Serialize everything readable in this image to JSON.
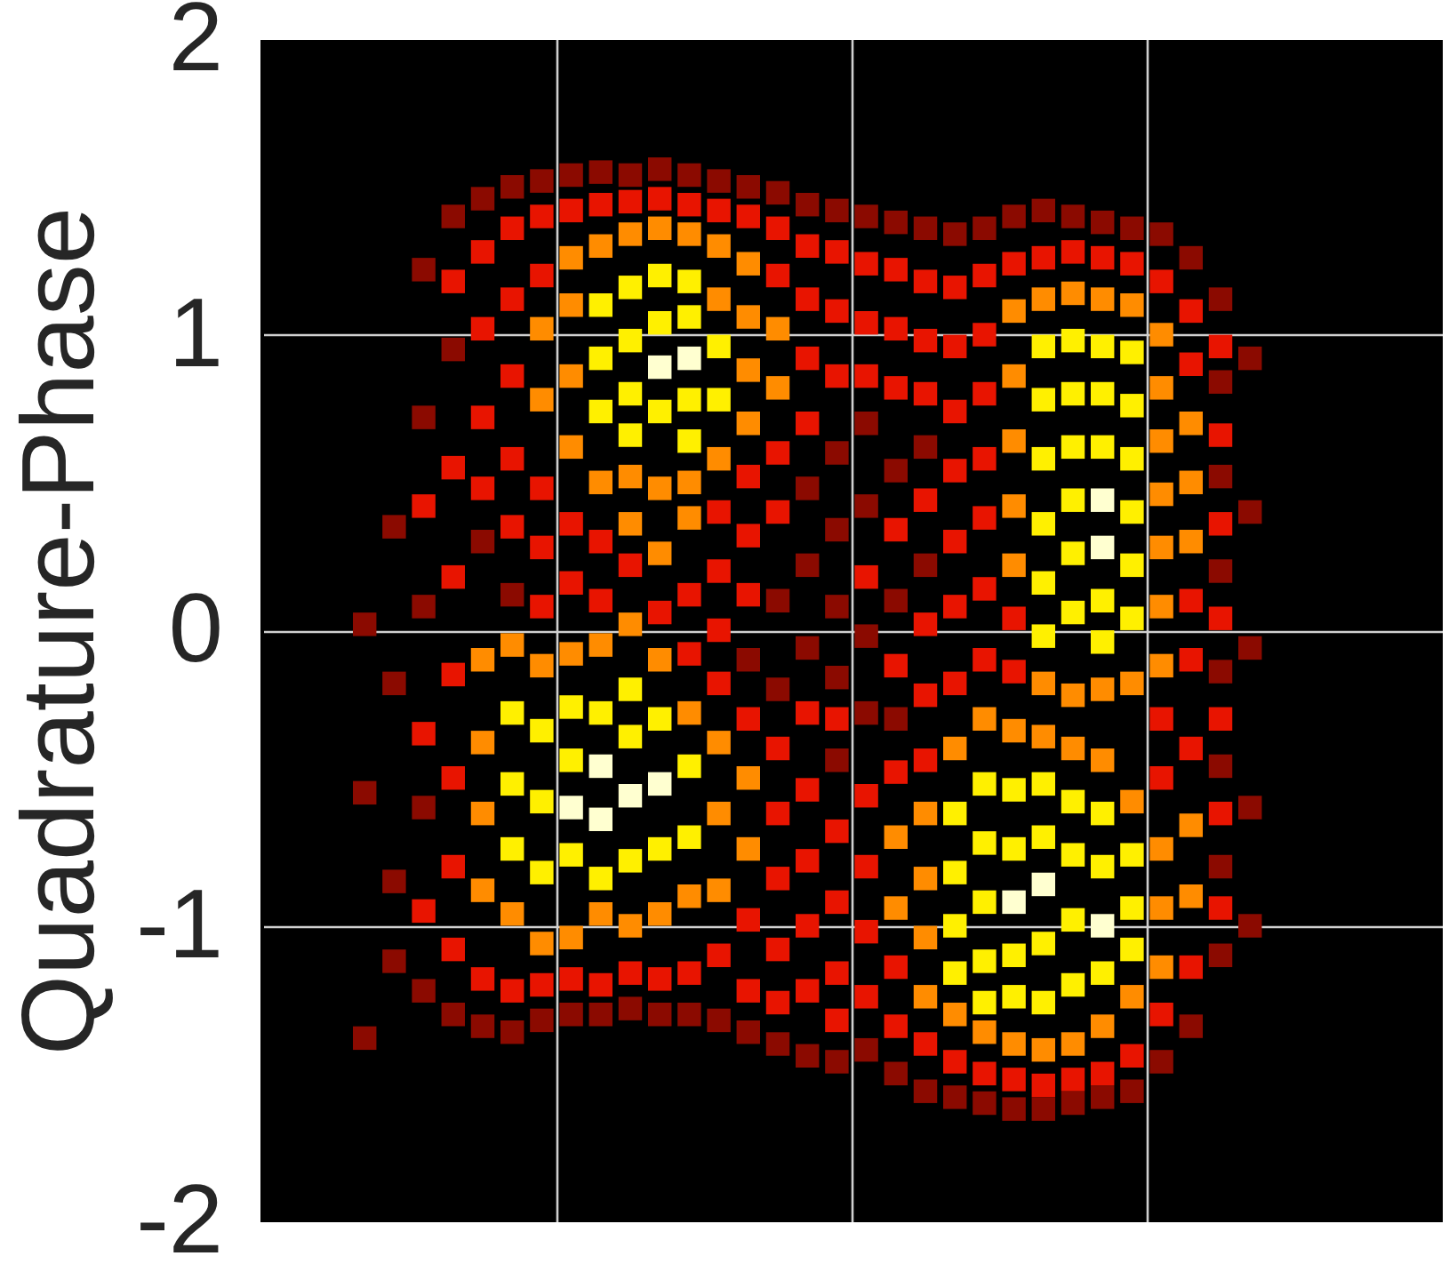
{
  "chart_data": {
    "type": "scatter",
    "ylabel": "Quadrature-Phase",
    "categories": [
      null,
      null,
      null,
      null,
      null,
      null,
      null,
      null,
      null,
      null,
      null,
      null,
      null,
      null,
      null,
      null,
      null,
      null,
      null,
      null,
      null,
      null,
      null,
      null,
      null,
      null,
      null,
      null,
      null,
      null,
      null,
      null,
      null,
      null,
      null,
      null,
      null,
      null,
      null,
      null
    ],
    "ylim": [
      -2,
      2
    ],
    "yticks": [
      -2,
      -1,
      0,
      1,
      2
    ],
    "tick_labels": "y",
    "grid": true,
    "marker": "square",
    "series": [
      {
        "color": "#8b0a00",
        "values": [
          null,
          null,
          null,
          0.02,
          0.35,
          1.22,
          1.4,
          1.46,
          1.5,
          1.52,
          1.54,
          1.55,
          1.54,
          1.56,
          1.54,
          1.52,
          1.5,
          1.48,
          1.44,
          1.42,
          1.4,
          1.38,
          1.36,
          1.34,
          1.36,
          1.4,
          1.42,
          1.4,
          1.38,
          1.36,
          1.34,
          1.26,
          1.12,
          0.92,
          null,
          null,
          null,
          null,
          null,
          null
        ]
      },
      {
        "color": "#8b0a00",
        "values": [
          null,
          null,
          null,
          -0.55,
          -0.18,
          0.72,
          0.95,
          0.3,
          0.12,
          -1.32,
          -1.3,
          -1.3,
          -1.28,
          -1.3,
          -1.3,
          -1.32,
          -0.1,
          0.1,
          0.48,
          0.6,
          0.7,
          0.54,
          0.62,
          -1.58,
          -1.6,
          -1.62,
          -1.62,
          -1.6,
          -1.58,
          -1.56,
          -1.46,
          -1.34,
          0.84,
          0.4,
          null,
          null,
          null,
          null,
          null,
          null
        ]
      },
      {
        "color": "#8b0a00",
        "values": [
          null,
          null,
          null,
          -1.38,
          -0.85,
          0.08,
          -1.3,
          -1.34,
          -1.36,
          null,
          null,
          null,
          null,
          null,
          null,
          null,
          -1.36,
          -0.2,
          0.22,
          0.34,
          0.42,
          0.1,
          0.22,
          null,
          null,
          null,
          null,
          null,
          null,
          null,
          null,
          null,
          0.52,
          -0.06,
          null,
          null,
          null,
          null,
          null,
          null
        ]
      },
      {
        "color": "#8b0a00",
        "values": [
          null,
          null,
          null,
          null,
          -1.12,
          -0.6,
          null,
          null,
          null,
          null,
          null,
          null,
          null,
          null,
          null,
          null,
          null,
          -1.4,
          -0.06,
          0.08,
          -0.02,
          -0.3,
          -1.56,
          null,
          null,
          null,
          null,
          null,
          null,
          null,
          null,
          null,
          0.2,
          -0.6,
          null,
          null,
          null,
          null,
          null,
          null
        ]
      },
      {
        "color": "#8b0a00",
        "values": [
          null,
          null,
          null,
          null,
          null,
          -1.22,
          null,
          null,
          null,
          null,
          null,
          null,
          null,
          null,
          null,
          null,
          null,
          null,
          -1.44,
          -0.16,
          -0.28,
          -1.5,
          null,
          null,
          null,
          null,
          null,
          null,
          null,
          null,
          null,
          null,
          -0.14,
          -1.0,
          null,
          null,
          null,
          null,
          null,
          null
        ]
      },
      {
        "color": "#8b0a00",
        "values": [
          null,
          null,
          null,
          null,
          null,
          null,
          null,
          null,
          null,
          null,
          null,
          null,
          null,
          null,
          null,
          null,
          null,
          null,
          null,
          -0.44,
          -1.42,
          null,
          null,
          null,
          null,
          null,
          null,
          null,
          null,
          null,
          null,
          null,
          -0.46,
          null,
          null,
          null,
          null,
          null,
          null,
          null
        ]
      },
      {
        "color": "#8b0a00",
        "values": [
          null,
          null,
          null,
          null,
          null,
          null,
          null,
          null,
          null,
          null,
          null,
          null,
          null,
          null,
          null,
          null,
          null,
          null,
          null,
          -1.46,
          null,
          null,
          null,
          null,
          null,
          null,
          null,
          null,
          null,
          null,
          null,
          null,
          -0.8,
          null,
          null,
          null,
          null,
          null,
          null,
          null
        ]
      },
      {
        "color": "#8b0a00",
        "values": [
          null,
          null,
          null,
          null,
          null,
          null,
          null,
          null,
          null,
          null,
          null,
          null,
          null,
          null,
          null,
          null,
          null,
          null,
          null,
          null,
          null,
          null,
          null,
          null,
          null,
          null,
          null,
          null,
          null,
          null,
          null,
          null,
          -1.1,
          null,
          null,
          null,
          null,
          null,
          null,
          null
        ]
      },
      {
        "color": "#e81400",
        "values": [
          null,
          null,
          null,
          null,
          null,
          0.42,
          1.18,
          1.28,
          1.36,
          1.4,
          1.42,
          1.44,
          1.45,
          1.46,
          1.44,
          1.42,
          1.4,
          1.36,
          1.3,
          1.28,
          1.24,
          1.22,
          1.18,
          1.16,
          1.2,
          1.24,
          1.26,
          1.28,
          1.26,
          1.24,
          1.18,
          1.08,
          0.96,
          null,
          null,
          null,
          null,
          null,
          null,
          null
        ]
      },
      {
        "color": "#e81400",
        "values": [
          null,
          null,
          null,
          null,
          null,
          -0.35,
          0.55,
          1.02,
          1.12,
          1.2,
          0.36,
          0.3,
          0.22,
          0.06,
          0.12,
          0.4,
          0.52,
          1.2,
          1.12,
          1.08,
          1.04,
          1.02,
          0.98,
          0.96,
          1.0,
          0.04,
          -1.54,
          -1.52,
          -1.5,
          -1.44,
          -0.3,
          0.9,
          0.66,
          null,
          null,
          null,
          null,
          null,
          null,
          null
        ]
      },
      {
        "color": "#e81400",
        "values": [
          null,
          null,
          null,
          null,
          null,
          -0.95,
          0.18,
          0.72,
          0.86,
          0.48,
          0.16,
          0.1,
          -1.16,
          -1.18,
          -0.08,
          0.2,
          0.32,
          0.6,
          0.92,
          0.86,
          0.86,
          0.82,
          0.8,
          0.74,
          0.8,
          -0.14,
          null,
          null,
          null,
          null,
          -0.5,
          0.1,
          0.36,
          null,
          null,
          null,
          null,
          null,
          null,
          null
        ]
      },
      {
        "color": "#e81400",
        "values": [
          null,
          null,
          null,
          null,
          null,
          null,
          -0.15,
          0.48,
          0.58,
          0.28,
          -1.18,
          -1.2,
          null,
          null,
          -1.16,
          0.0,
          0.12,
          0.4,
          0.7,
          -0.3,
          0.18,
          0.34,
          0.44,
          0.54,
          0.58,
          -1.52,
          null,
          null,
          null,
          null,
          -1.3,
          -0.1,
          0.04,
          null,
          null,
          null,
          null,
          null,
          null,
          null
        ]
      },
      {
        "color": "#e81400",
        "values": [
          null,
          null,
          null,
          null,
          null,
          null,
          -0.5,
          -1.18,
          0.35,
          0.08,
          null,
          null,
          null,
          null,
          null,
          -0.18,
          -0.3,
          -0.4,
          -0.28,
          -0.68,
          -0.56,
          -0.12,
          0.02,
          0.3,
          0.38,
          null,
          null,
          null,
          null,
          null,
          null,
          -0.4,
          -0.3,
          null,
          null,
          null,
          null,
          null,
          null,
          null
        ]
      },
      {
        "color": "#e81400",
        "values": [
          null,
          null,
          null,
          null,
          null,
          null,
          -0.8,
          null,
          -1.22,
          -1.2,
          null,
          null,
          null,
          null,
          null,
          -1.1,
          -0.98,
          -0.62,
          -0.54,
          -0.92,
          -0.8,
          -0.48,
          -0.22,
          0.08,
          0.14,
          null,
          null,
          null,
          null,
          null,
          null,
          -1.14,
          -0.62,
          null,
          null,
          null,
          null,
          null,
          null,
          null
        ]
      },
      {
        "color": "#e81400",
        "values": [
          null,
          null,
          null,
          null,
          null,
          null,
          -1.08,
          null,
          null,
          null,
          null,
          null,
          null,
          null,
          null,
          null,
          -1.22,
          -0.84,
          -0.78,
          -1.16,
          -1.02,
          -1.14,
          -0.44,
          -0.18,
          -0.1,
          null,
          null,
          null,
          null,
          null,
          null,
          null,
          -0.94,
          null,
          null,
          null,
          null,
          null,
          null,
          null
        ]
      },
      {
        "color": "#e81400",
        "values": [
          null,
          null,
          null,
          null,
          null,
          null,
          null,
          null,
          null,
          null,
          null,
          null,
          null,
          null,
          null,
          null,
          null,
          -1.08,
          -1.0,
          -1.32,
          -1.24,
          -1.34,
          -1.4,
          -1.46,
          -1.5,
          null,
          null,
          null,
          null,
          null,
          null,
          null,
          null,
          null,
          null,
          null,
          null,
          null,
          null,
          null
        ]
      },
      {
        "color": "#e81400",
        "values": [
          null,
          null,
          null,
          null,
          null,
          null,
          null,
          null,
          null,
          null,
          null,
          null,
          null,
          null,
          null,
          null,
          null,
          -1.26,
          -1.22,
          null,
          null,
          null,
          null,
          null,
          null,
          null,
          null,
          null,
          null,
          null,
          null,
          null,
          null,
          null,
          null,
          null,
          null,
          null,
          null,
          null
        ]
      },
      {
        "color": "#ff8c00",
        "values": [
          null,
          null,
          null,
          null,
          null,
          null,
          null,
          -0.1,
          -0.05,
          1.02,
          1.26,
          1.3,
          1.34,
          1.36,
          1.34,
          1.3,
          1.24,
          1.02,
          null,
          null,
          null,
          -0.7,
          -0.62,
          -0.4,
          -0.3,
          1.08,
          1.12,
          1.14,
          1.12,
          1.1,
          1.0,
          0.7,
          null,
          null,
          null,
          null,
          null,
          null,
          null,
          null
        ]
      },
      {
        "color": "#ff8c00",
        "values": [
          null,
          null,
          null,
          null,
          null,
          null,
          null,
          -0.38,
          -0.96,
          0.78,
          1.1,
          0.5,
          0.52,
          0.48,
          0.5,
          1.12,
          1.06,
          0.82,
          null,
          null,
          null,
          -0.94,
          -0.84,
          -1.3,
          -1.36,
          0.86,
          -0.18,
          -0.22,
          -0.2,
          -0.18,
          0.82,
          0.5,
          null,
          null,
          null,
          null,
          null,
          null,
          null,
          null
        ]
      },
      {
        "color": "#ff8c00",
        "values": [
          null,
          null,
          null,
          null,
          null,
          null,
          null,
          -0.62,
          null,
          -0.12,
          0.86,
          -0.05,
          0.36,
          0.26,
          0.38,
          0.58,
          0.88,
          null,
          null,
          null,
          null,
          null,
          -1.04,
          null,
          null,
          0.64,
          -0.36,
          -0.4,
          -0.44,
          -0.58,
          0.64,
          0.3,
          null,
          null,
          null,
          null,
          null,
          null,
          null,
          null
        ]
      },
      {
        "color": "#ff8c00",
        "values": [
          null,
          null,
          null,
          null,
          null,
          null,
          null,
          -0.88,
          null,
          -1.06,
          0.62,
          -0.96,
          0.02,
          -0.1,
          -0.28,
          -0.38,
          0.7,
          null,
          null,
          null,
          null,
          null,
          -1.24,
          null,
          null,
          0.42,
          -1.42,
          -1.4,
          -1.34,
          -1.24,
          0.46,
          -0.66,
          null,
          null,
          null,
          null,
          null,
          null,
          null,
          null
        ]
      },
      {
        "color": "#ff8c00",
        "values": [
          null,
          null,
          null,
          null,
          null,
          null,
          null,
          null,
          null,
          null,
          -0.08,
          null,
          -1.0,
          -0.96,
          -0.9,
          -0.62,
          -0.5,
          null,
          null,
          null,
          null,
          null,
          null,
          null,
          null,
          0.22,
          null,
          null,
          null,
          null,
          0.28,
          -0.9,
          null,
          null,
          null,
          null,
          null,
          null,
          null,
          null
        ]
      },
      {
        "color": "#ff8c00",
        "values": [
          null,
          null,
          null,
          null,
          null,
          null,
          null,
          null,
          null,
          null,
          -1.04,
          null,
          null,
          null,
          null,
          -0.88,
          -0.74,
          null,
          null,
          null,
          null,
          null,
          null,
          null,
          null,
          -0.34,
          null,
          null,
          null,
          null,
          0.08,
          null,
          null,
          null,
          null,
          null,
          null,
          null,
          null,
          null
        ]
      },
      {
        "color": "#ff8c00",
        "values": [
          null,
          null,
          null,
          null,
          null,
          null,
          null,
          null,
          null,
          null,
          null,
          null,
          null,
          null,
          null,
          null,
          null,
          null,
          null,
          null,
          null,
          null,
          null,
          null,
          null,
          -1.4,
          null,
          null,
          null,
          null,
          -0.12,
          null,
          null,
          null,
          null,
          null,
          null,
          null,
          null,
          null
        ]
      },
      {
        "color": "#ff8c00",
        "values": [
          null,
          null,
          null,
          null,
          null,
          null,
          null,
          null,
          null,
          null,
          null,
          null,
          null,
          null,
          null,
          null,
          null,
          null,
          null,
          null,
          null,
          null,
          null,
          null,
          null,
          null,
          null,
          null,
          null,
          null,
          -0.74,
          null,
          null,
          null,
          null,
          null,
          null,
          null,
          null,
          null
        ]
      },
      {
        "color": "#ff8c00",
        "values": [
          null,
          null,
          null,
          null,
          null,
          null,
          null,
          null,
          null,
          null,
          null,
          null,
          null,
          null,
          null,
          null,
          null,
          null,
          null,
          null,
          null,
          null,
          null,
          null,
          null,
          null,
          null,
          null,
          null,
          null,
          -0.94,
          null,
          null,
          null,
          null,
          null,
          null,
          null,
          null,
          null
        ]
      },
      {
        "color": "#ff8c00",
        "values": [
          null,
          null,
          null,
          null,
          null,
          null,
          null,
          null,
          null,
          null,
          null,
          null,
          null,
          null,
          null,
          null,
          null,
          null,
          null,
          null,
          null,
          null,
          null,
          null,
          null,
          null,
          null,
          null,
          null,
          null,
          -1.14,
          null,
          null,
          null,
          null,
          null,
          null,
          null,
          null,
          null
        ]
      },
      {
        "color": "#fff000",
        "values": [
          null,
          null,
          null,
          null,
          null,
          null,
          null,
          null,
          -0.28,
          -0.34,
          -0.26,
          1.1,
          1.16,
          1.2,
          1.18,
          0.96,
          null,
          null,
          null,
          null,
          null,
          null,
          null,
          -0.62,
          -0.52,
          -0.54,
          0.96,
          0.98,
          0.96,
          0.94,
          null,
          null,
          null,
          null,
          null,
          null,
          null,
          null,
          null,
          null
        ]
      },
      {
        "color": "#fff000",
        "values": [
          null,
          null,
          null,
          null,
          null,
          null,
          null,
          null,
          -0.52,
          -0.58,
          -0.44,
          0.92,
          0.98,
          1.04,
          1.06,
          0.78,
          null,
          null,
          null,
          null,
          null,
          null,
          null,
          -0.82,
          -0.72,
          -0.74,
          0.78,
          0.8,
          0.8,
          0.76,
          null,
          null,
          null,
          null,
          null,
          null,
          null,
          null,
          null,
          null
        ]
      },
      {
        "color": "#fff000",
        "values": [
          null,
          null,
          null,
          null,
          null,
          null,
          null,
          null,
          -0.74,
          -0.82,
          -0.76,
          0.74,
          0.8,
          0.74,
          0.78,
          null,
          null,
          null,
          null,
          null,
          null,
          null,
          null,
          -1.0,
          -0.92,
          -1.1,
          0.58,
          0.62,
          0.62,
          0.58,
          null,
          null,
          null,
          null,
          null,
          null,
          null,
          null,
          null,
          null
        ]
      },
      {
        "color": "#fff000",
        "values": [
          null,
          null,
          null,
          null,
          null,
          null,
          null,
          null,
          null,
          null,
          null,
          -0.28,
          0.66,
          -0.3,
          0.64,
          null,
          null,
          null,
          null,
          null,
          null,
          null,
          null,
          -1.16,
          -1.12,
          -1.24,
          0.36,
          0.44,
          0.1,
          0.4,
          null,
          null,
          null,
          null,
          null,
          null,
          null,
          null,
          null,
          null
        ]
      },
      {
        "color": "#fff000",
        "values": [
          null,
          null,
          null,
          null,
          null,
          null,
          null,
          null,
          null,
          null,
          null,
          -0.84,
          -0.2,
          -0.74,
          -0.46,
          null,
          null,
          null,
          null,
          null,
          null,
          null,
          null,
          null,
          -1.26,
          null,
          0.16,
          0.26,
          -0.04,
          0.22,
          null,
          null,
          null,
          null,
          null,
          null,
          null,
          null,
          null,
          null
        ]
      },
      {
        "color": "#fff000",
        "values": [
          null,
          null,
          null,
          null,
          null,
          null,
          null,
          null,
          null,
          null,
          null,
          null,
          -0.36,
          null,
          -0.7,
          null,
          null,
          null,
          null,
          null,
          null,
          null,
          null,
          null,
          null,
          null,
          -0.02,
          0.06,
          -0.62,
          0.04,
          null,
          null,
          null,
          null,
          null,
          null,
          null,
          null,
          null,
          null
        ]
      },
      {
        "color": "#fff000",
        "values": [
          null,
          null,
          null,
          null,
          null,
          null,
          null,
          null,
          null,
          null,
          null,
          null,
          -0.78,
          null,
          null,
          null,
          null,
          null,
          null,
          null,
          null,
          null,
          null,
          null,
          null,
          null,
          -0.52,
          -0.58,
          -0.8,
          -0.76,
          null,
          null,
          null,
          null,
          null,
          null,
          null,
          null,
          null,
          null
        ]
      },
      {
        "color": "#fff000",
        "values": [
          null,
          null,
          null,
          null,
          null,
          null,
          null,
          null,
          null,
          null,
          null,
          null,
          null,
          null,
          null,
          null,
          null,
          null,
          null,
          null,
          null,
          null,
          null,
          null,
          null,
          null,
          -0.7,
          -0.76,
          -1.16,
          -0.94,
          null,
          null,
          null,
          null,
          null,
          null,
          null,
          null,
          null,
          null
        ]
      },
      {
        "color": "#fff000",
        "values": [
          null,
          null,
          null,
          null,
          null,
          null,
          null,
          null,
          null,
          null,
          null,
          null,
          null,
          null,
          null,
          null,
          null,
          null,
          null,
          null,
          null,
          null,
          null,
          null,
          null,
          null,
          -1.06,
          -0.98,
          null,
          -1.08,
          null,
          null,
          null,
          null,
          null,
          null,
          null,
          null,
          null,
          null
        ]
      },
      {
        "color": "#fff000",
        "values": [
          null,
          null,
          null,
          null,
          null,
          null,
          null,
          null,
          null,
          null,
          null,
          null,
          null,
          null,
          null,
          null,
          null,
          null,
          null,
          null,
          null,
          null,
          null,
          null,
          null,
          null,
          -1.26,
          -1.2,
          null,
          null,
          null,
          null,
          null,
          null,
          null,
          null,
          null,
          null,
          null,
          null
        ]
      },
      {
        "color": "#ffffd0",
        "values": [
          null,
          null,
          null,
          null,
          null,
          null,
          null,
          null,
          null,
          null,
          -0.6,
          -0.46,
          -0.56,
          0.89,
          0.92,
          null,
          null,
          null,
          null,
          null,
          null,
          null,
          null,
          null,
          null,
          -0.92,
          -0.86,
          null,
          0.44,
          null,
          null,
          null,
          null,
          null,
          null,
          null,
          null,
          null,
          null,
          null
        ]
      },
      {
        "color": "#ffffd0",
        "values": [
          null,
          null,
          null,
          null,
          null,
          null,
          null,
          null,
          null,
          null,
          null,
          -0.64,
          null,
          -0.52,
          null,
          null,
          null,
          null,
          null,
          null,
          null,
          null,
          null,
          null,
          null,
          null,
          null,
          null,
          0.28,
          null,
          null,
          null,
          null,
          null,
          null,
          null,
          null,
          null,
          null,
          null
        ]
      },
      {
        "color": "#ffffd0",
        "values": [
          null,
          null,
          null,
          null,
          null,
          null,
          null,
          null,
          null,
          null,
          null,
          null,
          null,
          null,
          null,
          null,
          null,
          null,
          null,
          null,
          null,
          null,
          null,
          null,
          null,
          null,
          null,
          null,
          -1.0,
          null,
          null,
          null,
          null,
          null,
          null,
          null,
          null,
          null,
          null,
          null
        ]
      }
    ]
  }
}
